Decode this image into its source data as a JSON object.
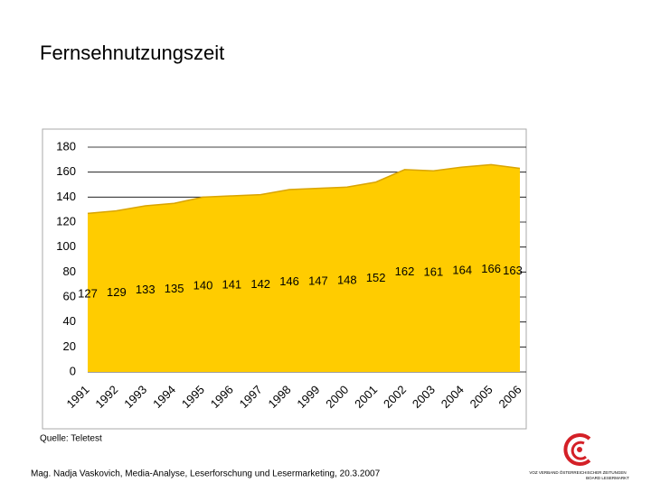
{
  "title": "Fernsehnutzungszeit",
  "source": "Quelle: Teletest",
  "footer": "Mag. Nadja Vaskovich, Media-Analyse, Leserforschung und Lesermarketing, 20.3.2007",
  "logo": {
    "line1": "VOZ VERBAND ÖSTERREICHISCHER ZEITUNGEN",
    "line2": "BOARD LESERMARKT"
  },
  "chart_data": {
    "type": "area",
    "categories": [
      "1991",
      "1992",
      "1993",
      "1994",
      "1995",
      "1996",
      "1997",
      "1998",
      "1999",
      "2000",
      "2001",
      "2002",
      "2003",
      "2004",
      "2005",
      "2006"
    ],
    "values": [
      127,
      129,
      133,
      135,
      140,
      141,
      142,
      146,
      147,
      148,
      152,
      162,
      161,
      164,
      166,
      163
    ],
    "color": "#ffcc00",
    "ylim": [
      0,
      180
    ],
    "yticks": [
      0,
      20,
      40,
      60,
      80,
      100,
      120,
      140,
      160,
      180
    ],
    "grid": true
  }
}
